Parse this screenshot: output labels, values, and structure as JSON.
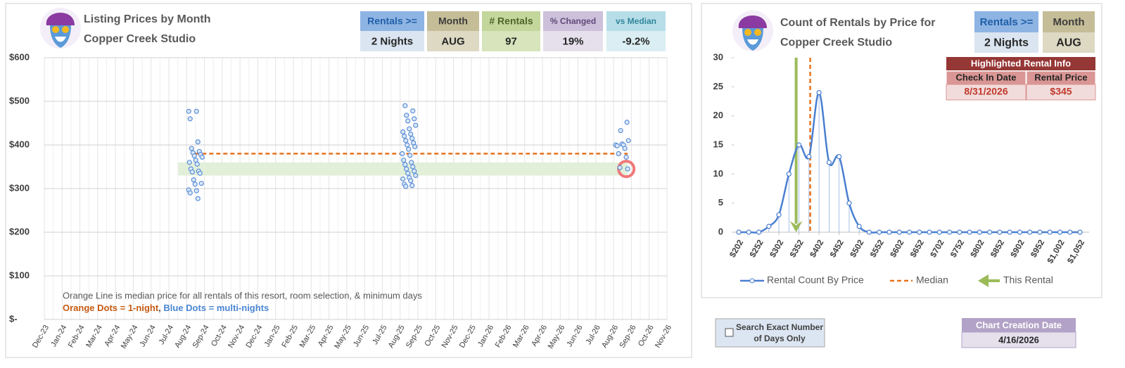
{
  "chart_data": [
    {
      "type": "scatter",
      "title": "Listing Prices by Month",
      "subtitle": "Copper Creek Studio",
      "categories": [
        "Dec-23",
        "Jan-24",
        "Feb-24",
        "Mar-24",
        "Apr-24",
        "May-24",
        "Jun-24",
        "Jul-24",
        "Aug-24",
        "Sep-24",
        "Oct-24",
        "Nov-24",
        "Dec-24",
        "Jan-25",
        "Feb-25",
        "Mar-25",
        "Apr-25",
        "May-25",
        "Jun-25",
        "Jul-25",
        "Aug-25",
        "Sep-25",
        "Oct-25",
        "Nov-25",
        "Dec-25",
        "Jan-26",
        "Feb-26",
        "Mar-26",
        "Apr-26",
        "May-26",
        "Jun-26",
        "Jul-26",
        "Aug-26",
        "Sep-26",
        "Oct-26",
        "Nov-26"
      ],
      "series": [
        {
          "color": "#5b8fd6",
          "x": [
            "Aug-24",
            "Aug-24",
            "Aug-24",
            "Aug-24",
            "Aug-24",
            "Aug-24",
            "Aug-24",
            "Aug-24",
            "Aug-24",
            "Aug-24",
            "Aug-24",
            "Aug-24",
            "Aug-24",
            "Aug-24",
            "Aug-24",
            "Aug-24",
            "Aug-24",
            "Aug-24",
            "Aug-24",
            "Aug-24",
            "Aug-24",
            "Aug-24",
            "Aug-24",
            "Aug-24",
            "Aug-25",
            "Aug-25",
            "Aug-25",
            "Aug-25",
            "Aug-25",
            "Aug-25",
            "Aug-25",
            "Aug-25",
            "Aug-25",
            "Aug-25",
            "Aug-25",
            "Aug-25",
            "Aug-25",
            "Aug-25",
            "Aug-25",
            "Aug-25",
            "Aug-25",
            "Aug-25",
            "Aug-25",
            "Aug-25",
            "Aug-25",
            "Aug-25",
            "Aug-25",
            "Aug-25",
            "Aug-25",
            "Aug-25",
            "Aug-25",
            "Aug-25",
            "Aug-25",
            "Aug-25",
            "Aug-25",
            "Aug-25",
            "Aug-26",
            "Aug-26",
            "Aug-26",
            "Aug-26",
            "Aug-26",
            "Aug-26",
            "Aug-26",
            "Aug-26",
            "Aug-26",
            "Aug-26",
            "Aug-26",
            "Aug-26"
          ],
          "values": [
            477,
            477,
            460,
            407,
            392,
            385,
            382,
            378,
            375,
            372,
            365,
            360,
            356,
            345,
            340,
            338,
            335,
            320,
            312,
            310,
            297,
            295,
            290,
            277,
            490,
            478,
            468,
            460,
            455,
            445,
            437,
            430,
            425,
            420,
            415,
            410,
            405,
            400,
            396,
            390,
            380,
            376,
            365,
            360,
            355,
            350,
            345,
            340,
            335,
            330,
            325,
            322,
            318,
            310,
            307,
            305,
            452,
            433,
            410,
            402,
            400,
            400,
            398,
            392,
            380,
            372,
            348,
            345
          ]
        }
      ],
      "median": {
        "value": 380,
        "color": "#e8731e",
        "from": "Aug-24",
        "to": "Aug-26"
      },
      "band": {
        "values": [
          330,
          360
        ],
        "color": "#e2efd9"
      },
      "highlight": {
        "x": "Aug-26",
        "value": 345,
        "color": "#f0787a"
      },
      "ylim": [
        0,
        600
      ],
      "yticks": [
        {
          "value": 0,
          "label": "$-"
        },
        {
          "value": 100,
          "label": "$100"
        },
        {
          "value": 200,
          "label": "$200"
        },
        {
          "value": 300,
          "label": "$300"
        },
        {
          "value": 400,
          "label": "$400"
        },
        {
          "value": 500,
          "label": "$500"
        },
        {
          "value": 600,
          "label": "$600"
        }
      ],
      "grid": true,
      "annotations": [
        "Orange Line is median price for all rentals of this resort, room selection, & minimum days",
        "Orange Dots = 1-night",
        ", ",
        "Blue Dots = multi-nights"
      ]
    },
    {
      "type": "line",
      "title": "Count of Rentals by Price for",
      "subtitle": "Copper Creek Studio",
      "x": [
        202,
        227,
        252,
        277,
        302,
        327,
        352,
        377,
        402,
        427,
        452,
        477,
        502,
        527,
        552,
        577,
        602,
        627,
        652,
        677,
        702,
        727,
        752,
        777,
        802,
        827,
        852,
        877,
        902,
        927,
        952,
        977,
        1002,
        1027,
        1052
      ],
      "series": [
        {
          "name": "Rental Count By Price",
          "color": "#4a7fd0",
          "values": [
            0,
            0,
            0,
            1,
            3,
            10,
            15,
            13,
            24,
            12,
            13,
            5,
            1,
            0,
            0,
            0,
            0,
            0,
            0,
            0,
            0,
            0,
            0,
            0,
            0,
            0,
            0,
            0,
            0,
            0,
            0,
            0,
            0,
            0,
            0
          ]
        }
      ],
      "median": {
        "name": "Median",
        "value": 380,
        "color": "#e8731e"
      },
      "this_rental": {
        "name": "This Rental",
        "value": 345,
        "color": "#9bbb59"
      },
      "xlim": [
        202,
        1052
      ],
      "xticks": [
        {
          "value": 202,
          "label": "$202"
        },
        {
          "value": 252,
          "label": "$252"
        },
        {
          "value": 302,
          "label": "$302"
        },
        {
          "value": 352,
          "label": "$352"
        },
        {
          "value": 402,
          "label": "$402"
        },
        {
          "value": 452,
          "label": "$452"
        },
        {
          "value": 502,
          "label": "$502"
        },
        {
          "value": 552,
          "label": "$552"
        },
        {
          "value": 602,
          "label": "$602"
        },
        {
          "value": 652,
          "label": "$652"
        },
        {
          "value": 702,
          "label": "$702"
        },
        {
          "value": 752,
          "label": "$752"
        },
        {
          "value": 802,
          "label": "$802"
        },
        {
          "value": 852,
          "label": "$852"
        },
        {
          "value": 902,
          "label": "$902"
        },
        {
          "value": 952,
          "label": "$952"
        },
        {
          "value": 1002,
          "label": "$1,002"
        },
        {
          "value": 1052,
          "label": "$1,052"
        }
      ],
      "ylim": [
        0,
        30
      ],
      "yticks": [
        0,
        5,
        10,
        15,
        20,
        25,
        30
      ]
    }
  ],
  "info_boxes": [
    {
      "label": "Rentals >=",
      "value": "2 Nights"
    },
    {
      "label": "Month",
      "value": "AUG"
    },
    {
      "label": "# Rentals",
      "value": "97"
    },
    {
      "label": "% Changed",
      "value": "19%"
    },
    {
      "label": "vs Median",
      "value": "-9.2%"
    }
  ],
  "right_boxes": [
    {
      "label": "Rentals >=",
      "value": "2 Nights"
    },
    {
      "label": "Month",
      "value": "AUG"
    }
  ],
  "highlighted_rental": {
    "title": "Highlighted Rental Info",
    "headers": [
      "Check In Date",
      "Rental Price"
    ],
    "values": [
      "8/31/2026",
      "$345"
    ]
  },
  "search_option": "Search Exact Number of Days Only",
  "creation_date": {
    "label": "Chart Creation Date",
    "value": "4/16/2026"
  }
}
